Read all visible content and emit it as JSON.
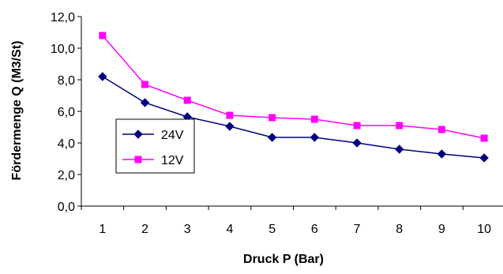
{
  "chart_data": {
    "type": "line",
    "title": "",
    "xlabel": "Druck P (Bar)",
    "ylabel": "Fördermenge Q (M3/St)",
    "categories": [
      "1",
      "2",
      "3",
      "4",
      "5",
      "6",
      "7",
      "8",
      "9",
      "10"
    ],
    "ylim": [
      0,
      12
    ],
    "yticks": [
      "0,0",
      "2,0",
      "4,0",
      "6,0",
      "8,0",
      "10,0",
      "12,0"
    ],
    "grid": false,
    "legend_position": "left-center",
    "series": [
      {
        "name": "24V",
        "color": "#000080",
        "marker": "diamond",
        "values": [
          8.2,
          6.55,
          5.65,
          5.05,
          4.35,
          4.35,
          4.0,
          3.6,
          3.3,
          3.05
        ]
      },
      {
        "name": "12V",
        "color": "#FF00FF",
        "marker": "square",
        "values": [
          10.8,
          7.7,
          6.7,
          5.75,
          5.6,
          5.5,
          5.1,
          5.1,
          4.85,
          4.3
        ]
      }
    ]
  }
}
